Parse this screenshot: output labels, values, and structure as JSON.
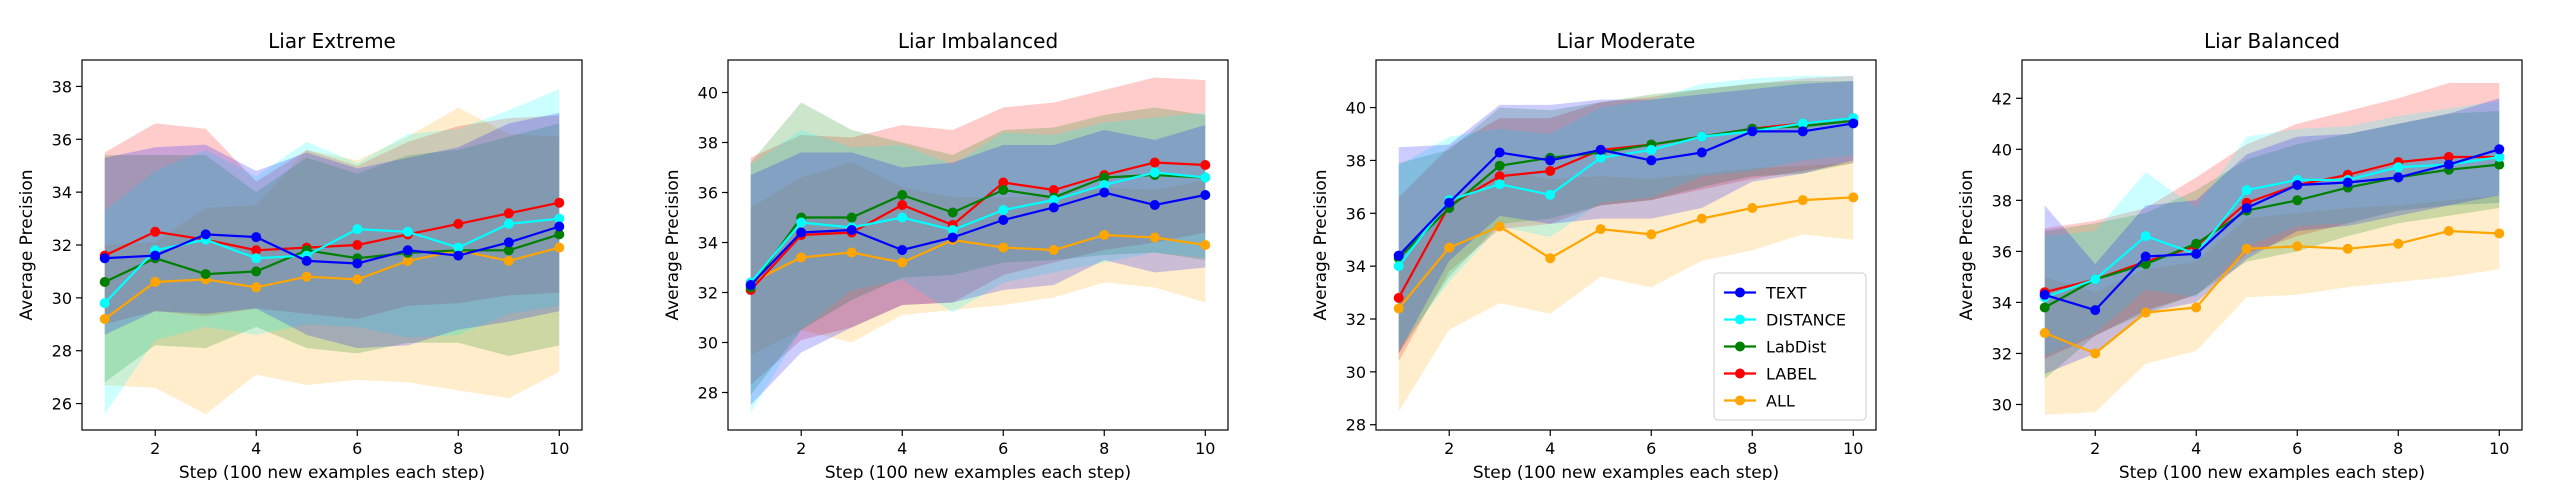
{
  "figure": {
    "xlabel": "Step (100 new examples each step)",
    "ylabel": "Average Precision",
    "legend": {
      "location": "lower-right",
      "panel_index": 2,
      "entries": [
        "TEXT",
        "DISTANCE",
        "LabDist",
        "LABEL",
        "ALL"
      ]
    }
  },
  "series_colors": {
    "TEXT": "#0000ff",
    "DISTANCE": "#00ffff",
    "LabDist": "#008000",
    "LABEL": "#ff0000",
    "ALL": "#ffa500"
  },
  "chart_data": [
    {
      "type": "line",
      "title": "Liar Extreme",
      "xlabel": "Step (100 new examples each step)",
      "ylabel": "Average Precision",
      "x": [
        1,
        2,
        3,
        4,
        5,
        6,
        7,
        8,
        9,
        10
      ],
      "xticks": [
        2,
        4,
        6,
        8,
        10
      ],
      "xlim": [
        0.55,
        10.45
      ],
      "ylim": [
        25.0,
        39.0
      ],
      "yticks": [
        26,
        28,
        30,
        32,
        34,
        36,
        38
      ],
      "series": [
        {
          "name": "TEXT",
          "values": [
            31.5,
            31.6,
            32.4,
            32.3,
            31.4,
            31.3,
            31.8,
            31.6,
            32.1,
            32.7
          ],
          "band_low": [
            28.6,
            29.5,
            29.4,
            29.6,
            28.6,
            28.1,
            28.2,
            28.8,
            29.1,
            29.5
          ],
          "band_high": [
            35.3,
            35.7,
            35.8,
            34.8,
            35.5,
            34.9,
            35.3,
            35.7,
            36.6,
            37.0
          ]
        },
        {
          "name": "DISTANCE",
          "values": [
            29.8,
            31.8,
            32.2,
            31.5,
            31.6,
            32.6,
            32.5,
            31.9,
            32.8,
            33.0
          ],
          "band_low": [
            25.6,
            28.4,
            28.9,
            28.6,
            29.0,
            28.9,
            28.5,
            28.6,
            29.4,
            29.7
          ],
          "band_high": [
            33.3,
            34.8,
            35.6,
            34.6,
            35.9,
            35.1,
            36.2,
            36.4,
            37.1,
            37.9
          ]
        },
        {
          "name": "LabDist",
          "values": [
            30.6,
            31.5,
            30.9,
            31.0,
            31.8,
            31.5,
            31.7,
            31.8,
            31.8,
            32.4
          ],
          "band_low": [
            26.8,
            28.2,
            28.1,
            28.9,
            28.1,
            27.9,
            28.3,
            28.3,
            27.8,
            28.2
          ],
          "band_high": [
            35.4,
            35.4,
            35.4,
            34.0,
            35.3,
            34.7,
            35.4,
            35.6,
            36.1,
            36.6
          ]
        },
        {
          "name": "LABEL",
          "values": [
            31.6,
            32.5,
            32.2,
            31.8,
            31.9,
            32.0,
            32.4,
            32.8,
            33.2,
            33.6
          ],
          "band_low": [
            29.0,
            29.5,
            29.3,
            29.6,
            29.4,
            29.2,
            29.7,
            29.8,
            30.1,
            30.2
          ],
          "band_high": [
            35.5,
            36.6,
            36.4,
            34.4,
            35.6,
            35.0,
            35.9,
            36.5,
            36.8,
            36.9
          ]
        },
        {
          "name": "ALL",
          "values": [
            29.2,
            30.6,
            30.7,
            30.4,
            30.8,
            30.7,
            31.4,
            31.8,
            31.4,
            31.9
          ],
          "band_low": [
            26.7,
            26.6,
            25.6,
            27.1,
            26.7,
            26.9,
            26.8,
            26.5,
            26.2,
            27.2
          ],
          "band_high": [
            32.0,
            32.1,
            33.4,
            33.5,
            35.6,
            35.2,
            36.1,
            37.2,
            36.2,
            36.1
          ]
        }
      ]
    },
    {
      "type": "line",
      "title": "Liar Imbalanced",
      "xlabel": "Step (100 new examples each step)",
      "ylabel": "Average Precision",
      "x": [
        1,
        2,
        3,
        4,
        5,
        6,
        7,
        8,
        9,
        10
      ],
      "xticks": [
        2,
        4,
        6,
        8,
        10
      ],
      "xlim": [
        0.55,
        10.45
      ],
      "ylim": [
        26.5,
        41.3
      ],
      "yticks": [
        28,
        30,
        32,
        34,
        36,
        38,
        40
      ],
      "series": [
        {
          "name": "TEXT",
          "values": [
            32.3,
            34.4,
            34.5,
            33.7,
            34.2,
            34.9,
            35.4,
            36.0,
            35.5,
            35.9
          ],
          "band_low": [
            27.5,
            29.6,
            30.6,
            31.5,
            31.6,
            32.1,
            32.3,
            33.3,
            32.8,
            33.0
          ],
          "band_high": [
            36.7,
            37.6,
            37.6,
            37.0,
            37.2,
            37.9,
            37.9,
            38.5,
            38.1,
            38.7
          ]
        },
        {
          "name": "DISTANCE",
          "values": [
            32.4,
            34.8,
            34.6,
            35.0,
            34.5,
            35.3,
            35.7,
            36.3,
            36.8,
            36.6
          ],
          "band_low": [
            27.2,
            30.5,
            32.1,
            32.5,
            31.2,
            32.4,
            32.8,
            33.2,
            33.6,
            33.4
          ],
          "band_high": [
            37.1,
            38.5,
            37.8,
            37.9,
            37.1,
            38.4,
            38.3,
            38.8,
            39.0,
            39.2
          ]
        },
        {
          "name": "LabDist",
          "values": [
            32.2,
            35.0,
            35.0,
            35.9,
            35.2,
            36.1,
            35.8,
            36.6,
            36.7,
            36.6
          ],
          "band_low": [
            27.9,
            30.5,
            31.7,
            32.6,
            32.7,
            33.2,
            33.3,
            33.5,
            33.6,
            33.3
          ],
          "band_high": [
            37.2,
            39.6,
            38.5,
            38.0,
            37.5,
            38.5,
            38.6,
            39.1,
            39.4,
            39.1
          ]
        },
        {
          "name": "LABEL",
          "values": [
            32.1,
            34.3,
            34.4,
            35.5,
            34.7,
            36.4,
            36.1,
            36.7,
            37.2,
            37.1
          ],
          "band_low": [
            28.3,
            30.1,
            30.6,
            31.5,
            31.6,
            32.7,
            33.2,
            33.7,
            34.0,
            34.4
          ],
          "band_high": [
            37.4,
            38.3,
            38.2,
            38.7,
            38.5,
            39.4,
            39.6,
            40.1,
            40.6,
            40.5
          ]
        },
        {
          "name": "ALL",
          "values": [
            32.4,
            33.4,
            33.6,
            33.2,
            34.1,
            33.8,
            33.7,
            34.3,
            34.2,
            33.9
          ],
          "band_low": [
            29.5,
            30.5,
            30.0,
            31.1,
            31.3,
            31.5,
            31.8,
            32.4,
            32.2,
            31.6
          ],
          "band_high": [
            35.4,
            36.6,
            37.2,
            36.2,
            35.8,
            35.8,
            35.9,
            36.2,
            36.1,
            36.5
          ]
        }
      ]
    },
    {
      "type": "line",
      "title": "Liar Moderate",
      "xlabel": "Step (100 new examples each step)",
      "ylabel": "Average Precision",
      "x": [
        1,
        2,
        3,
        4,
        5,
        6,
        7,
        8,
        9,
        10
      ],
      "xticks": [
        2,
        4,
        6,
        8,
        10
      ],
      "xlim": [
        0.55,
        10.45
      ],
      "ylim": [
        27.8,
        41.8
      ],
      "yticks": [
        28,
        30,
        32,
        34,
        36,
        38,
        40
      ],
      "series": [
        {
          "name": "TEXT",
          "values": [
            34.4,
            36.4,
            38.3,
            38.0,
            38.4,
            38.0,
            38.3,
            39.1,
            39.1,
            39.4
          ],
          "band_low": [
            30.7,
            34.2,
            35.9,
            35.6,
            35.8,
            35.8,
            36.2,
            37.2,
            37.5,
            38.0
          ],
          "band_high": [
            38.5,
            38.6,
            40.1,
            40.1,
            40.3,
            40.3,
            40.5,
            40.7,
            40.9,
            41.0
          ]
        },
        {
          "name": "DISTANCE",
          "values": [
            34.0,
            36.5,
            37.1,
            36.7,
            38.1,
            38.4,
            38.9,
            39.1,
            39.4,
            39.6
          ],
          "band_low": [
            30.9,
            33.4,
            35.5,
            35.1,
            36.4,
            36.6,
            37.4,
            37.6,
            38.0,
            38.2
          ],
          "band_high": [
            37.8,
            38.9,
            39.2,
            39.0,
            40.0,
            40.3,
            40.9,
            41.1,
            41.2,
            41.2
          ]
        },
        {
          "name": "LabDist",
          "values": [
            34.3,
            36.2,
            37.8,
            38.1,
            38.3,
            38.6,
            38.9,
            39.2,
            39.3,
            39.5
          ],
          "band_low": [
            30.7,
            33.6,
            35.6,
            35.8,
            36.3,
            36.5,
            37.0,
            37.4,
            37.5,
            37.9
          ],
          "band_high": [
            37.9,
            38.4,
            40.0,
            39.9,
            40.2,
            40.5,
            40.7,
            40.9,
            41.0,
            41.0
          ]
        },
        {
          "name": "LABEL",
          "values": [
            32.8,
            36.3,
            37.4,
            37.6,
            38.4,
            38.6,
            38.9,
            39.2,
            39.4,
            39.6
          ],
          "band_low": [
            30.4,
            33.8,
            35.4,
            35.6,
            36.3,
            36.5,
            36.9,
            37.3,
            37.6,
            37.9
          ],
          "band_high": [
            36.6,
            38.5,
            39.6,
            39.6,
            40.2,
            40.4,
            40.7,
            40.9,
            41.1,
            41.2
          ]
        },
        {
          "name": "ALL",
          "values": [
            32.4,
            34.7,
            35.5,
            34.3,
            35.4,
            35.2,
            35.8,
            36.2,
            36.5,
            36.6
          ],
          "band_low": [
            28.5,
            31.6,
            32.6,
            32.2,
            33.6,
            33.2,
            34.2,
            34.6,
            35.2,
            35.0
          ],
          "band_high": [
            34.4,
            36.4,
            37.6,
            37.3,
            37.4,
            37.3,
            37.5,
            37.7,
            37.8,
            37.9
          ]
        }
      ]
    },
    {
      "type": "line",
      "title": "Liar Balanced",
      "xlabel": "Step (100 new examples each step)",
      "ylabel": "Average Precision",
      "x": [
        1,
        2,
        3,
        4,
        5,
        6,
        7,
        8,
        9,
        10
      ],
      "xticks": [
        2,
        4,
        6,
        8,
        10
      ],
      "xlim": [
        0.55,
        10.45
      ],
      "ylim": [
        29.0,
        43.5
      ],
      "yticks": [
        30,
        32,
        34,
        36,
        38,
        40,
        42
      ],
      "series": [
        {
          "name": "TEXT",
          "values": [
            34.3,
            33.7,
            35.8,
            35.9,
            37.7,
            38.6,
            38.7,
            38.9,
            39.4,
            40.0
          ],
          "band_low": [
            31.2,
            32.0,
            33.6,
            34.0,
            35.7,
            36.8,
            37.0,
            37.4,
            37.8,
            38.2
          ],
          "band_high": [
            37.8,
            35.5,
            37.8,
            38.0,
            39.8,
            40.5,
            40.6,
            41.0,
            41.4,
            42.0
          ]
        },
        {
          "name": "DISTANCE",
          "values": [
            34.2,
            34.9,
            36.6,
            35.9,
            38.4,
            38.8,
            38.8,
            39.3,
            39.4,
            39.7
          ],
          "band_low": [
            31.9,
            32.8,
            34.5,
            34.2,
            36.2,
            37.0,
            37.1,
            37.6,
            37.8,
            37.9
          ],
          "band_high": [
            36.6,
            36.8,
            39.1,
            37.7,
            40.5,
            40.8,
            40.9,
            41.3,
            41.6,
            41.9
          ]
        },
        {
          "name": "LabDist",
          "values": [
            33.8,
            34.9,
            35.5,
            36.3,
            37.6,
            38.0,
            38.5,
            38.9,
            39.2,
            39.4
          ],
          "band_low": [
            31.0,
            32.7,
            33.6,
            34.3,
            35.6,
            36.0,
            36.6,
            37.1,
            37.4,
            37.7
          ],
          "band_high": [
            36.8,
            37.1,
            37.5,
            38.4,
            39.6,
            40.2,
            40.6,
            41.0,
            41.4,
            41.5
          ]
        },
        {
          "name": "LABEL",
          "values": [
            34.4,
            34.9,
            35.6,
            36.2,
            37.9,
            38.6,
            39.0,
            39.5,
            39.7,
            39.7
          ],
          "band_low": [
            31.8,
            32.7,
            33.7,
            34.3,
            35.9,
            36.6,
            37.1,
            37.6,
            37.8,
            37.9
          ],
          "band_high": [
            36.9,
            37.2,
            37.7,
            38.9,
            40.2,
            41.0,
            41.5,
            42.0,
            42.6,
            42.6
          ]
        },
        {
          "name": "ALL",
          "values": [
            32.8,
            32.0,
            33.6,
            33.8,
            36.1,
            36.2,
            36.1,
            36.3,
            36.8,
            36.7
          ],
          "band_low": [
            29.6,
            29.7,
            31.6,
            32.1,
            34.2,
            34.3,
            34.6,
            34.8,
            35.0,
            35.3
          ],
          "band_high": [
            35.0,
            34.4,
            35.3,
            35.6,
            37.3,
            37.5,
            37.7,
            37.8,
            38.0,
            38.2
          ]
        }
      ]
    }
  ]
}
